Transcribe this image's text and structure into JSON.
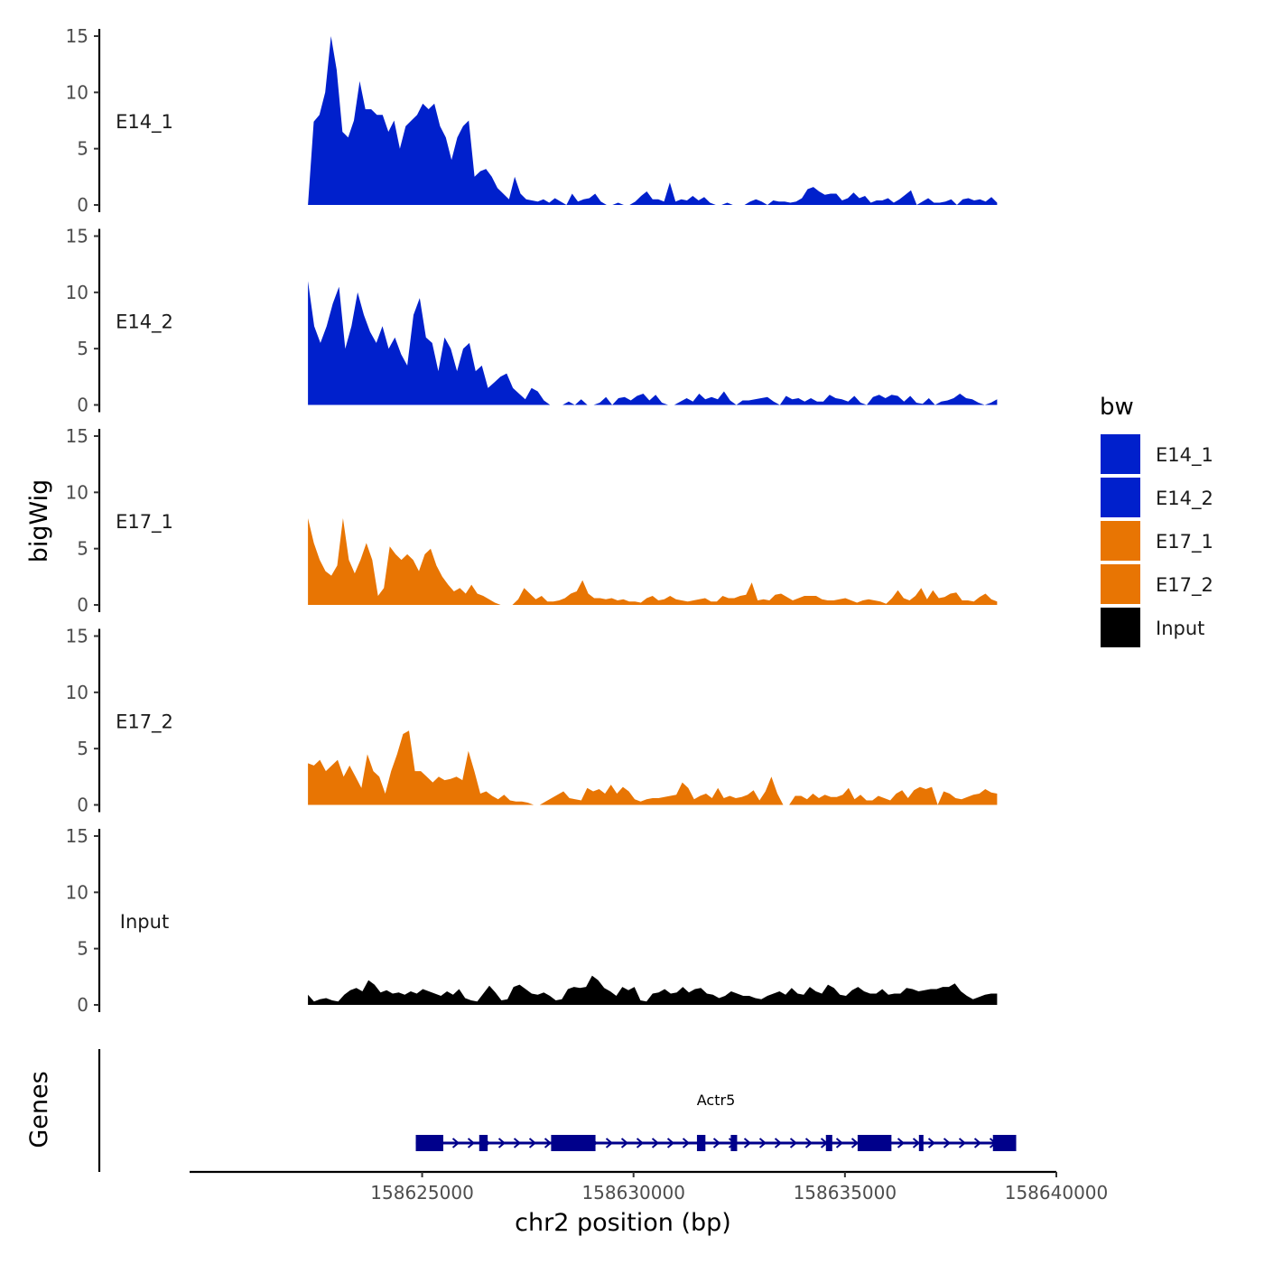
{
  "chart_data": {
    "type": "area",
    "ylabel": "bigWig",
    "genes_label": "Genes",
    "xlabel": "chr2 position (bp)",
    "xlim": [
      158619500,
      158640000
    ],
    "x_ticks": [
      158625000,
      158630000,
      158635000,
      158640000
    ],
    "x_tick_labels": [
      "158625000",
      "158630000",
      "158635000",
      "158640000"
    ],
    "ylim": [
      0,
      15
    ],
    "y_ticks": [
      0,
      5,
      10,
      15
    ],
    "y_tick_labels": [
      "0",
      "5",
      "10",
      "15"
    ],
    "data_start": 158622300,
    "data_end": 158638600,
    "legend": {
      "title": "bw",
      "entries": [
        {
          "label": "E14_1",
          "color": "#0020CC"
        },
        {
          "label": "E14_2",
          "color": "#0020CC"
        },
        {
          "label": "E17_1",
          "color": "#E87503"
        },
        {
          "label": "E17_2",
          "color": "#E87503"
        },
        {
          "label": "Input",
          "color": "#000000"
        }
      ]
    },
    "series": [
      {
        "name": "E14_1",
        "color": "#0020CC",
        "values": [
          0,
          7.4,
          8,
          10,
          15,
          12,
          6.5,
          6,
          7.5,
          11,
          8.5,
          8.5,
          8,
          8,
          6.5,
          7.5,
          5,
          7,
          7.5,
          8,
          9,
          8.5,
          9,
          7,
          6,
          4,
          6,
          7,
          7.5,
          2.5,
          3,
          3.2,
          2.5,
          1.5,
          1,
          0.5,
          2.5,
          1,
          0.5,
          0.4,
          0.3,
          0.5,
          0.2,
          0.6,
          0.3,
          0,
          1,
          0.3,
          0.5,
          0.6,
          1,
          0.3,
          0,
          0,
          0.2,
          0,
          0,
          0.3,
          0.8,
          1.2,
          0.5,
          0.5,
          0.3,
          2,
          0.3,
          0.5,
          0.4,
          0.8,
          0.4,
          0.7,
          0.2,
          0,
          0,
          0.2,
          0,
          0,
          0,
          0.3,
          0.5,
          0.3,
          0,
          0.4,
          0.3,
          0.3,
          0.2,
          0.3,
          0.6,
          1.4,
          1.6,
          1.2,
          0.9,
          1.0,
          1.0,
          0.4,
          0.6,
          1.1,
          0.6,
          0.8,
          0.2,
          0.4,
          0.4,
          0.6,
          0.2,
          0.5,
          0.9,
          1.3,
          0,
          0.3,
          0.6,
          0.2,
          0.2,
          0.3,
          0.5,
          0,
          0.5,
          0.6,
          0.4,
          0.5,
          0.3,
          0.7,
          0.2
        ]
      },
      {
        "name": "E14_2",
        "color": "#0020CC",
        "values": [
          11,
          7,
          5.5,
          7,
          9,
          10.5,
          5,
          7,
          10,
          8,
          6.5,
          5.5,
          7,
          5,
          6,
          4.5,
          3.5,
          8,
          9.5,
          6,
          5.5,
          3,
          6,
          5,
          3,
          5,
          5.5,
          3,
          3.5,
          1.5,
          2,
          2.5,
          2.8,
          1.5,
          1,
          0.5,
          1.5,
          1.2,
          0.4,
          0,
          0,
          0,
          0.3,
          0,
          0.5,
          0,
          0,
          0.2,
          0.7,
          0,
          0.6,
          0.7,
          0.4,
          0.8,
          1.0,
          0.4,
          0.9,
          0.2,
          0,
          0,
          0.3,
          0.6,
          0.3,
          1.0,
          0.5,
          0.7,
          0.5,
          1.2,
          0.4,
          0,
          0.4,
          0.4,
          0.5,
          0.6,
          0.7,
          0.3,
          0,
          0.8,
          0.5,
          0.6,
          0.3,
          0.6,
          0.3,
          0.3,
          0.9,
          0.6,
          0.5,
          0.3,
          0.8,
          0.2,
          0,
          0.7,
          0.9,
          0.6,
          0.9,
          0.8,
          0.3,
          0.8,
          0.2,
          0.1,
          0.6,
          0,
          0.3,
          0.4,
          0.6,
          1.0,
          0.6,
          0.5,
          0.2,
          0,
          0.2,
          0.5
        ]
      },
      {
        "name": "E17_1",
        "color": "#E87503",
        "values": [
          7.7,
          5.5,
          4,
          3,
          2.6,
          3.5,
          7.7,
          4,
          2.8,
          4,
          5.5,
          4,
          0.8,
          1.5,
          5.2,
          4.5,
          4,
          4.5,
          4,
          3,
          4.5,
          5,
          3.5,
          2.5,
          1.8,
          1.2,
          1.5,
          1,
          1.8,
          1,
          0.8,
          0.5,
          0.2,
          0,
          0,
          0,
          0.5,
          1.5,
          1,
          0.5,
          0.8,
          0.3,
          0.3,
          0.4,
          0.6,
          1.0,
          1.2,
          2.2,
          1.0,
          0.6,
          0.6,
          0.5,
          0.6,
          0.4,
          0.5,
          0.3,
          0.3,
          0.2,
          0.6,
          0.8,
          0.4,
          0.5,
          0.8,
          0.5,
          0.4,
          0.3,
          0.4,
          0.5,
          0.6,
          0.3,
          0.3,
          0.8,
          0.6,
          0.6,
          0.8,
          0.9,
          2.0,
          0.4,
          0.5,
          0.4,
          0.9,
          1.0,
          0.7,
          0.4,
          0.6,
          0.8,
          0.8,
          0.8,
          0.5,
          0.4,
          0.4,
          0.5,
          0.6,
          0.4,
          0.2,
          0.4,
          0.5,
          0.4,
          0.3,
          0.1,
          0.6,
          1.3,
          0.6,
          0.4,
          0.8,
          1.5,
          0.5,
          1.3,
          0.6,
          0.7,
          1.0,
          1.1,
          0.4,
          0.4,
          0.3,
          0.7,
          1.0,
          0.5,
          0.3
        ]
      },
      {
        "name": "E17_2",
        "color": "#E87503",
        "values": [
          3.7,
          3.5,
          4,
          3,
          3.5,
          4,
          2.5,
          3.5,
          2.5,
          1.5,
          4.5,
          3,
          2.5,
          1,
          3,
          4.5,
          6.3,
          6.6,
          3,
          3,
          2.5,
          2,
          2.5,
          2.2,
          2.3,
          2.5,
          2.2,
          4.8,
          3,
          1,
          1.2,
          0.8,
          0.5,
          0.9,
          0.4,
          0.3,
          0.3,
          0.2,
          0,
          0,
          0.3,
          0.6,
          0.9,
          1.2,
          0.6,
          0.5,
          0.4,
          1.5,
          1.2,
          1.4,
          1.0,
          1.8,
          1.0,
          1.6,
          1.2,
          0.5,
          0.3,
          0.5,
          0.6,
          0.6,
          0.7,
          0.8,
          0.9,
          2.0,
          1.5,
          0.5,
          0.8,
          1.0,
          0.6,
          1.5,
          0.6,
          0.8,
          0.6,
          0.7,
          0.9,
          1.3,
          0.4,
          1.2,
          2.5,
          1.0,
          0,
          0,
          0.8,
          0.8,
          0.5,
          1.0,
          0.6,
          0.9,
          0.7,
          0.7,
          0.9,
          1.5,
          0.5,
          0.9,
          0.4,
          0.4,
          0.8,
          0.6,
          0.4,
          1.0,
          1.3,
          0.6,
          1.3,
          1.6,
          1.4,
          1.6,
          0,
          1.2,
          1.0,
          0.6,
          0.5,
          0.7,
          0.9,
          1.0,
          1.4,
          1.1,
          1.0
        ]
      },
      {
        "name": "Input",
        "color": "#000000",
        "values": [
          0.9,
          0.3,
          0.5,
          0.6,
          0.4,
          0.3,
          0.9,
          1.3,
          1.5,
          1.2,
          2.2,
          1.8,
          1.1,
          1.3,
          1.0,
          1.1,
          0.9,
          1.2,
          1.0,
          1.4,
          1.2,
          1.0,
          0.8,
          1.2,
          0.9,
          1.4,
          0.6,
          0.4,
          0.3,
          1.0,
          1.7,
          1.1,
          0.4,
          0.5,
          1.6,
          1.8,
          1.4,
          1.0,
          0.9,
          1.1,
          0.8,
          0.4,
          0.5,
          1.4,
          1.6,
          1.5,
          1.6,
          2.6,
          2.2,
          1.5,
          1.2,
          0.8,
          1.6,
          1.3,
          1.6,
          0.4,
          0.3,
          1.0,
          1.1,
          1.4,
          1.0,
          1.1,
          1.6,
          1.1,
          1.4,
          1.5,
          1.0,
          0.9,
          0.6,
          0.8,
          1.2,
          1.0,
          0.8,
          0.8,
          0.6,
          0.5,
          0.8,
          1.0,
          1.2,
          0.9,
          1.5,
          1.0,
          0.9,
          1.6,
          1.2,
          1.0,
          1.8,
          1.5,
          0.9,
          0.8,
          1.3,
          1.6,
          1.2,
          1.0,
          1.0,
          1.4,
          0.9,
          1.0,
          1.0,
          1.5,
          1.4,
          1.2,
          1.3,
          1.4,
          1.4,
          1.6,
          1.6,
          1.9,
          1.2,
          0.8,
          0.5,
          0.7,
          0.9,
          1.0,
          1.0
        ]
      }
    ],
    "genes": [
      {
        "name": "Actr5",
        "strand": "+",
        "start": 158624850,
        "end": 158639050,
        "exons": [
          [
            158624850,
            158625500
          ],
          [
            158626350,
            158626550
          ],
          [
            158628050,
            158629100
          ],
          [
            158631500,
            158631700
          ],
          [
            158632300,
            158632450
          ],
          [
            158634550,
            158634700
          ],
          [
            158635300,
            158636100
          ],
          [
            158636750,
            158636850
          ],
          [
            158638500,
            158639050
          ]
        ]
      }
    ]
  }
}
